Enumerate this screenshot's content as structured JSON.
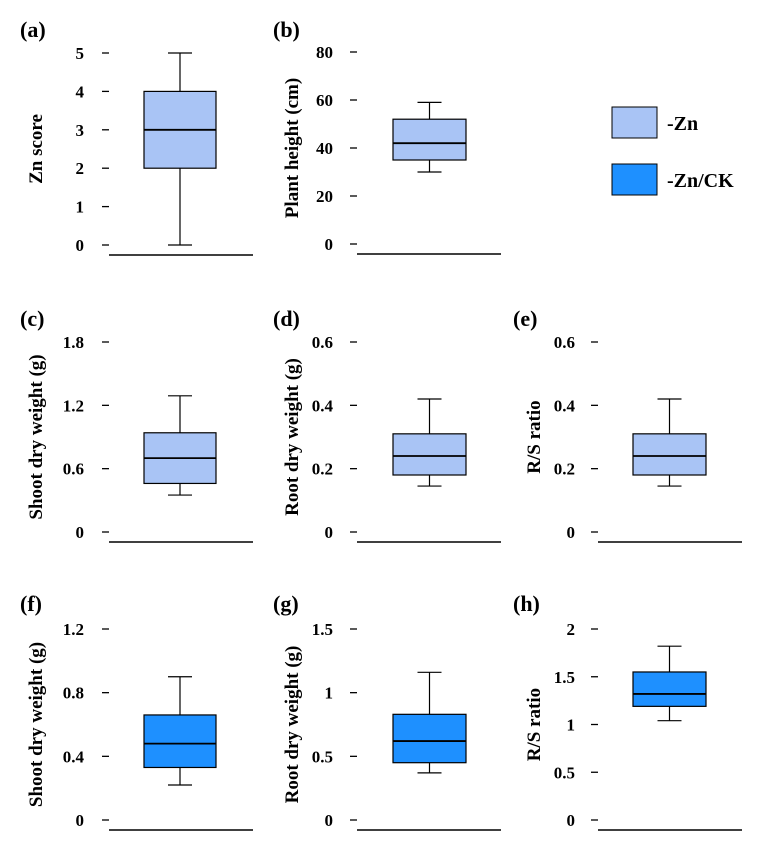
{
  "chart_data": [
    {
      "panel": "(a)",
      "type": "box",
      "ylabel": "Zn score",
      "ylim": [
        0,
        5
      ],
      "yticks": [
        "0",
        "1",
        "2",
        "3",
        "4",
        "5"
      ],
      "ytick_values": [
        0,
        1,
        2,
        3,
        4,
        5
      ],
      "series": "-Zn",
      "whisker_low": 0,
      "q1": 2,
      "median": 3,
      "q3": 4,
      "whisker_high": 5
    },
    {
      "panel": "(b)",
      "type": "box",
      "ylabel": "Plant height (cm)",
      "ylim": [
        0,
        80
      ],
      "yticks": [
        "0",
        "20",
        "40",
        "60",
        "80"
      ],
      "ytick_values": [
        0,
        20,
        40,
        60,
        80
      ],
      "series": "-Zn",
      "whisker_low": 30,
      "q1": 35,
      "median": 42,
      "q3": 52,
      "whisker_high": 59
    },
    {
      "panel": "(c)",
      "type": "box",
      "ylabel": "Shoot dry weight (g)",
      "ylim": [
        0,
        1.8
      ],
      "yticks": [
        "0",
        "0.6",
        "1.2",
        "1.8"
      ],
      "ytick_values": [
        0,
        0.6,
        1.2,
        1.8
      ],
      "series": "-Zn",
      "whisker_low": 0.35,
      "q1": 0.46,
      "median": 0.7,
      "q3": 0.94,
      "whisker_high": 1.29
    },
    {
      "panel": "(d)",
      "type": "box",
      "ylabel": "Root dry weight (g)",
      "ylim": [
        0,
        0.6
      ],
      "yticks": [
        "0",
        "0.2",
        "0.4",
        "0.6"
      ],
      "ytick_values": [
        0,
        0.2,
        0.4,
        0.6
      ],
      "series": "-Zn",
      "whisker_low": 0.145,
      "q1": 0.18,
      "median": 0.24,
      "q3": 0.31,
      "whisker_high": 0.42
    },
    {
      "panel": "(e)",
      "type": "box",
      "ylabel": "R/S ratio",
      "ylim": [
        0,
        0.6
      ],
      "yticks": [
        "0",
        "0.2",
        "0.4",
        "0.6"
      ],
      "ytick_values": [
        0,
        0.2,
        0.4,
        0.6
      ],
      "series": "-Zn",
      "whisker_low": 0.145,
      "q1": 0.18,
      "median": 0.24,
      "q3": 0.31,
      "whisker_high": 0.42
    },
    {
      "panel": "(f)",
      "type": "box",
      "ylabel": "Shoot dry weight (g)",
      "ylim": [
        0,
        1.2
      ],
      "yticks": [
        "0",
        "0.4",
        "0.8",
        "1.2"
      ],
      "ytick_values": [
        0,
        0.4,
        0.8,
        1.2
      ],
      "series": "-Zn/CK",
      "whisker_low": 0.22,
      "q1": 0.33,
      "median": 0.48,
      "q3": 0.66,
      "whisker_high": 0.9
    },
    {
      "panel": "(g)",
      "type": "box",
      "ylabel": "Root dry weight (g)",
      "ylim": [
        0,
        1.5
      ],
      "yticks": [
        "0",
        "0.5",
        "1",
        "1.5"
      ],
      "ytick_values": [
        0,
        0.5,
        1,
        1.5
      ],
      "series": "-Zn/CK",
      "whisker_low": 0.37,
      "q1": 0.45,
      "median": 0.62,
      "q3": 0.83,
      "whisker_high": 1.16
    },
    {
      "panel": "(h)",
      "type": "box",
      "ylabel": "R/S ratio",
      "ylim": [
        0,
        2
      ],
      "yticks": [
        "0",
        "0.5",
        "1",
        "1.5",
        "2"
      ],
      "ytick_values": [
        0,
        0.5,
        1,
        1.5,
        2
      ],
      "series": "-Zn/CK",
      "whisker_low": 1.04,
      "q1": 1.19,
      "median": 1.32,
      "q3": 1.55,
      "whisker_high": 1.82
    }
  ],
  "legend": [
    {
      "label": "-Zn",
      "color": "#a9c4f5"
    },
    {
      "label": "-Zn/CK",
      "color": "#1e90ff"
    }
  ]
}
